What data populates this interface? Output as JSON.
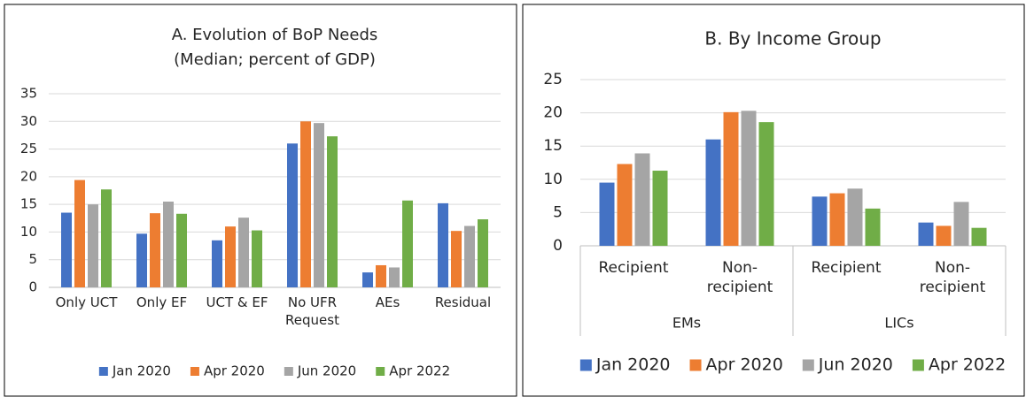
{
  "chart_data": [
    {
      "type": "bar",
      "title": "A. Evolution of BoP Needs",
      "subtitle": "(Median; percent of GDP)",
      "categories": [
        "Only UCT",
        "Only EF",
        "UCT & EF",
        "No UFR Request",
        "AEs",
        "Residual"
      ],
      "series": [
        {
          "name": "Jan 2020",
          "color": "#4472c4",
          "values": [
            13.5,
            9.7,
            8.5,
            26,
            2.7,
            15.2
          ]
        },
        {
          "name": "Apr 2020",
          "color": "#ed7d31",
          "values": [
            19.4,
            13.4,
            11,
            30,
            4,
            10.2
          ]
        },
        {
          "name": "Jun 2020",
          "color": "#a5a5a5",
          "values": [
            15,
            15.5,
            12.6,
            29.7,
            3.6,
            11.1
          ]
        },
        {
          "name": "Apr 2022",
          "color": "#70ad47",
          "values": [
            17.7,
            13.3,
            10.3,
            27.3,
            15.7,
            12.3
          ]
        }
      ],
      "ylim": [
        0,
        35
      ],
      "yticks": [
        0,
        5,
        10,
        15,
        20,
        25,
        30,
        35
      ],
      "grid": true,
      "legend": "bottom"
    },
    {
      "type": "bar",
      "title": "B. By Income Group",
      "groups": [
        {
          "name": "EMs",
          "categories": [
            "Recipient",
            "Non-recipient"
          ]
        },
        {
          "name": "LICs",
          "categories": [
            "Recipient",
            "Non-recipient"
          ]
        }
      ],
      "series": [
        {
          "name": "Jan 2020",
          "color": "#4472c4",
          "values": [
            9.5,
            16,
            7.4,
            3.5
          ]
        },
        {
          "name": "Apr 2020",
          "color": "#ed7d31",
          "values": [
            12.3,
            20.1,
            7.9,
            3
          ]
        },
        {
          "name": "Jun 2020",
          "color": "#a5a5a5",
          "values": [
            13.9,
            20.3,
            8.6,
            6.6
          ]
        },
        {
          "name": "Apr 2022",
          "color": "#70ad47",
          "values": [
            11.3,
            18.6,
            5.6,
            2.7
          ]
        }
      ],
      "ylim": [
        0,
        25
      ],
      "yticks": [
        0,
        5,
        10,
        15,
        20,
        25
      ],
      "grid": true,
      "legend": "bottom"
    }
  ]
}
